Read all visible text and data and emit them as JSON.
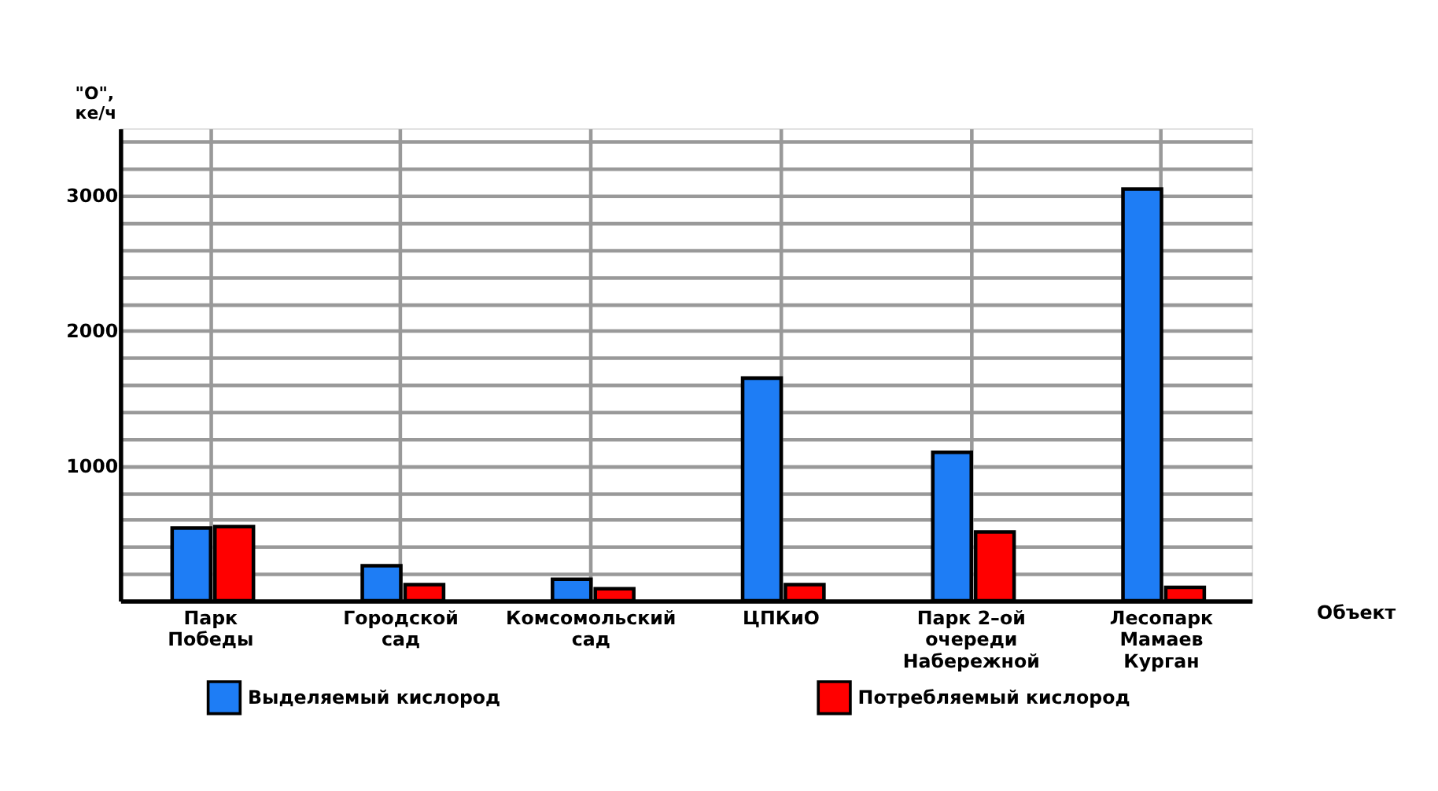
{
  "chart_data": {
    "type": "bar",
    "xlabel": "Объект",
    "ylabel": "\"О\",\nке/ч",
    "categories": [
      "Парк\nПобеды",
      "Городской\nсад",
      "Комсомольский\nсад",
      "ЦПКиО",
      "Парк 2–ой\nочереди\nНабережной",
      "Лесопарк\nМамаев\nКурган"
    ],
    "series": [
      {
        "name": "Выделяемый кислород",
        "color": "#1e7df5",
        "values": [
          540,
          260,
          160,
          1650,
          1100,
          3050
        ]
      },
      {
        "name": "Потребляемый кислород",
        "color": "#ff0000",
        "values": [
          550,
          120,
          90,
          120,
          510,
          100
        ]
      }
    ],
    "ylim": [
      0,
      3500
    ],
    "yticks": [
      {
        "value": 200,
        "label": null
      },
      {
        "value": 400,
        "label": null
      },
      {
        "value": 600,
        "label": null
      },
      {
        "value": 800,
        "label": null
      },
      1000,
      {
        "value": 1200,
        "label": null
      },
      {
        "value": 1400,
        "label": null
      },
      {
        "value": 1600,
        "label": null
      },
      {
        "value": 1800,
        "label": null
      },
      2000,
      {
        "value": 2200,
        "label": null
      },
      {
        "value": 2400,
        "label": null
      },
      {
        "value": 2600,
        "label": null
      },
      {
        "value": 2800,
        "label": null
      },
      3000,
      {
        "value": 3200,
        "label": null
      },
      {
        "value": 3400,
        "label": null
      }
    ],
    "grid": true,
    "legend": "bottom"
  }
}
